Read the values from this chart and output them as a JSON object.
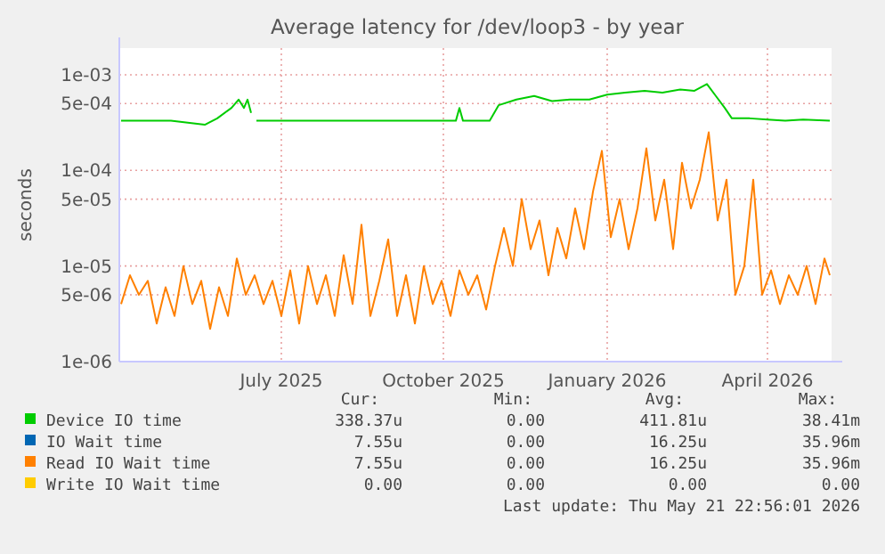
{
  "chart_data": {
    "type": "line",
    "title": "Average latency for /dev/loop3 - by year",
    "ylabel": "seconds",
    "log": "y",
    "grid": true,
    "legend": "bottom",
    "xlim": [
      "2025-04-16",
      "2026-05-21"
    ],
    "xticks": [
      {
        "value": "2025-07-16",
        "label": "July 2025"
      },
      {
        "value": "2025-10-15",
        "label": "October 2025"
      },
      {
        "value": "2026-01-15",
        "label": "January 2026"
      },
      {
        "value": "2026-04-15",
        "label": "April 2026"
      }
    ],
    "ylim": [
      1e-06,
      0.0019
    ],
    "yticks": [
      {
        "value": 1e-06,
        "label": "1e-06"
      },
      {
        "value": 5e-06,
        "label": "5e-06"
      },
      {
        "value": 1e-05,
        "label": "1e-05"
      },
      {
        "value": 5e-05,
        "label": "5e-05"
      },
      {
        "value": 0.0001,
        "label": "1e-04"
      },
      {
        "value": 0.0005,
        "label": "5e-04"
      },
      {
        "value": 0.001,
        "label": "1e-03"
      }
    ],
    "series": [
      {
        "name": "Device IO time",
        "color": "#00cc00",
        "x": [
          "2025-04-17",
          "2025-05-15",
          "2025-06-03",
          "2025-06-10",
          "2025-06-18",
          "2025-06-22",
          "2025-06-25",
          "2025-06-27",
          "2025-06-29",
          "2025-06-30",
          "2025-07-02",
          "2025-08-01",
          "2025-09-01",
          "2025-10-22",
          "2025-10-24",
          "2025-10-26",
          "2025-11-10",
          "2025-11-15",
          "2025-11-25",
          "2025-12-05",
          "2025-12-15",
          "2025-12-25",
          "2026-01-05",
          "2026-01-15",
          "2026-01-25",
          "2026-02-05",
          "2026-02-15",
          "2026-02-25",
          "2026-03-05",
          "2026-03-12",
          "2026-03-17",
          "2026-03-22",
          "2026-03-26",
          "2026-04-05",
          "2026-04-15",
          "2026-04-25",
          "2026-05-05",
          "2026-05-20"
        ],
        "values": [
          0.00033,
          0.00033,
          0.0003,
          0.00035,
          0.00045,
          0.00055,
          0.00045,
          0.00055,
          0.0004,
          null,
          0.00033,
          0.00033,
          0.00033,
          0.00033,
          0.00045,
          0.00033,
          0.00033,
          0.00048,
          0.00055,
          0.0006,
          0.00053,
          0.00055,
          0.00055,
          0.00062,
          0.00065,
          0.00068,
          0.00065,
          0.0007,
          0.00068,
          0.0008,
          0.0006,
          0.00045,
          0.00035,
          0.00035,
          0.00034,
          0.00033,
          0.00034,
          0.00033
        ]
      },
      {
        "name": "IO Wait time",
        "color": "#0066b3",
        "values": [
          null
        ]
      },
      {
        "name": "Read IO Wait time",
        "color": "#ff8000",
        "x": [
          "2025-04-17",
          "2025-04-22",
          "2025-04-27",
          "2025-05-02",
          "2025-05-07",
          "2025-05-12",
          "2025-05-17",
          "2025-05-22",
          "2025-05-27",
          "2025-06-01",
          "2025-06-06",
          "2025-06-11",
          "2025-06-16",
          "2025-06-21",
          "2025-06-26",
          "2025-07-01",
          "2025-07-06",
          "2025-07-11",
          "2025-07-16",
          "2025-07-21",
          "2025-07-26",
          "2025-07-31",
          "2025-08-05",
          "2025-08-10",
          "2025-08-15",
          "2025-08-20",
          "2025-08-25",
          "2025-08-30",
          "2025-09-04",
          "2025-09-09",
          "2025-09-14",
          "2025-09-19",
          "2025-09-24",
          "2025-09-29",
          "2025-10-04",
          "2025-10-09",
          "2025-10-14",
          "2025-10-19",
          "2025-10-24",
          "2025-10-29",
          "2025-11-03",
          "2025-11-08",
          "2025-11-13",
          "2025-11-18",
          "2025-11-23",
          "2025-11-28",
          "2025-12-03",
          "2025-12-08",
          "2025-12-13",
          "2025-12-18",
          "2025-12-23",
          "2025-12-28",
          "2026-01-02",
          "2026-01-07",
          "2026-01-12",
          "2026-01-17",
          "2026-01-22",
          "2026-01-27",
          "2026-02-01",
          "2026-02-06",
          "2026-02-11",
          "2026-02-16",
          "2026-02-21",
          "2026-02-26",
          "2026-03-03",
          "2026-03-08",
          "2026-03-13",
          "2026-03-18",
          "2026-03-23",
          "2026-03-28",
          "2026-04-02",
          "2026-04-07",
          "2026-04-12",
          "2026-04-17",
          "2026-04-22",
          "2026-04-27",
          "2026-05-02",
          "2026-05-07",
          "2026-05-12",
          "2026-05-17",
          "2026-05-20"
        ],
        "values": [
          4e-06,
          8e-06,
          5e-06,
          7e-06,
          2.5e-06,
          6e-06,
          3e-06,
          1e-05,
          4e-06,
          7e-06,
          2.2e-06,
          6e-06,
          3e-06,
          1.2e-05,
          5e-06,
          8e-06,
          4e-06,
          7e-06,
          3e-06,
          9e-06,
          2.5e-06,
          1e-05,
          4e-06,
          8e-06,
          3e-06,
          1.3e-05,
          4e-06,
          2.7e-05,
          3e-06,
          7e-06,
          1.9e-05,
          3e-06,
          8e-06,
          2.5e-06,
          1e-05,
          4e-06,
          7e-06,
          3e-06,
          9e-06,
          5e-06,
          8e-06,
          3.5e-06,
          1e-05,
          2.5e-05,
          1e-05,
          5e-05,
          1.5e-05,
          3e-05,
          8e-06,
          2.5e-05,
          1.2e-05,
          4e-05,
          1.5e-05,
          6e-05,
          0.00016,
          2e-05,
          5e-05,
          1.5e-05,
          4e-05,
          0.00017,
          3e-05,
          8e-05,
          1.5e-05,
          0.00012,
          4e-05,
          8e-05,
          0.00025,
          3e-05,
          8e-05,
          5e-06,
          1e-05,
          8e-05,
          5e-06,
          9e-06,
          4e-06,
          8e-06,
          5e-06,
          1e-05,
          4e-06,
          1.2e-05,
          8e-06
        ]
      },
      {
        "name": "Write IO Wait time",
        "color": "#ffcc00",
        "values": [
          null
        ]
      }
    ],
    "annotations": [
      "Cur:",
      "Min:",
      "Avg:",
      "Max:",
      "338.37u",
      "0.00",
      "411.81u",
      "38.41m",
      "7.55u",
      "0.00",
      "16.25u",
      "35.96m",
      "7.55u",
      "0.00",
      "16.25u",
      "35.96m",
      "0.00",
      "0.00",
      "0.00",
      "0.00",
      "Last update: Thu May 21 22:56:01 2026"
    ]
  }
}
